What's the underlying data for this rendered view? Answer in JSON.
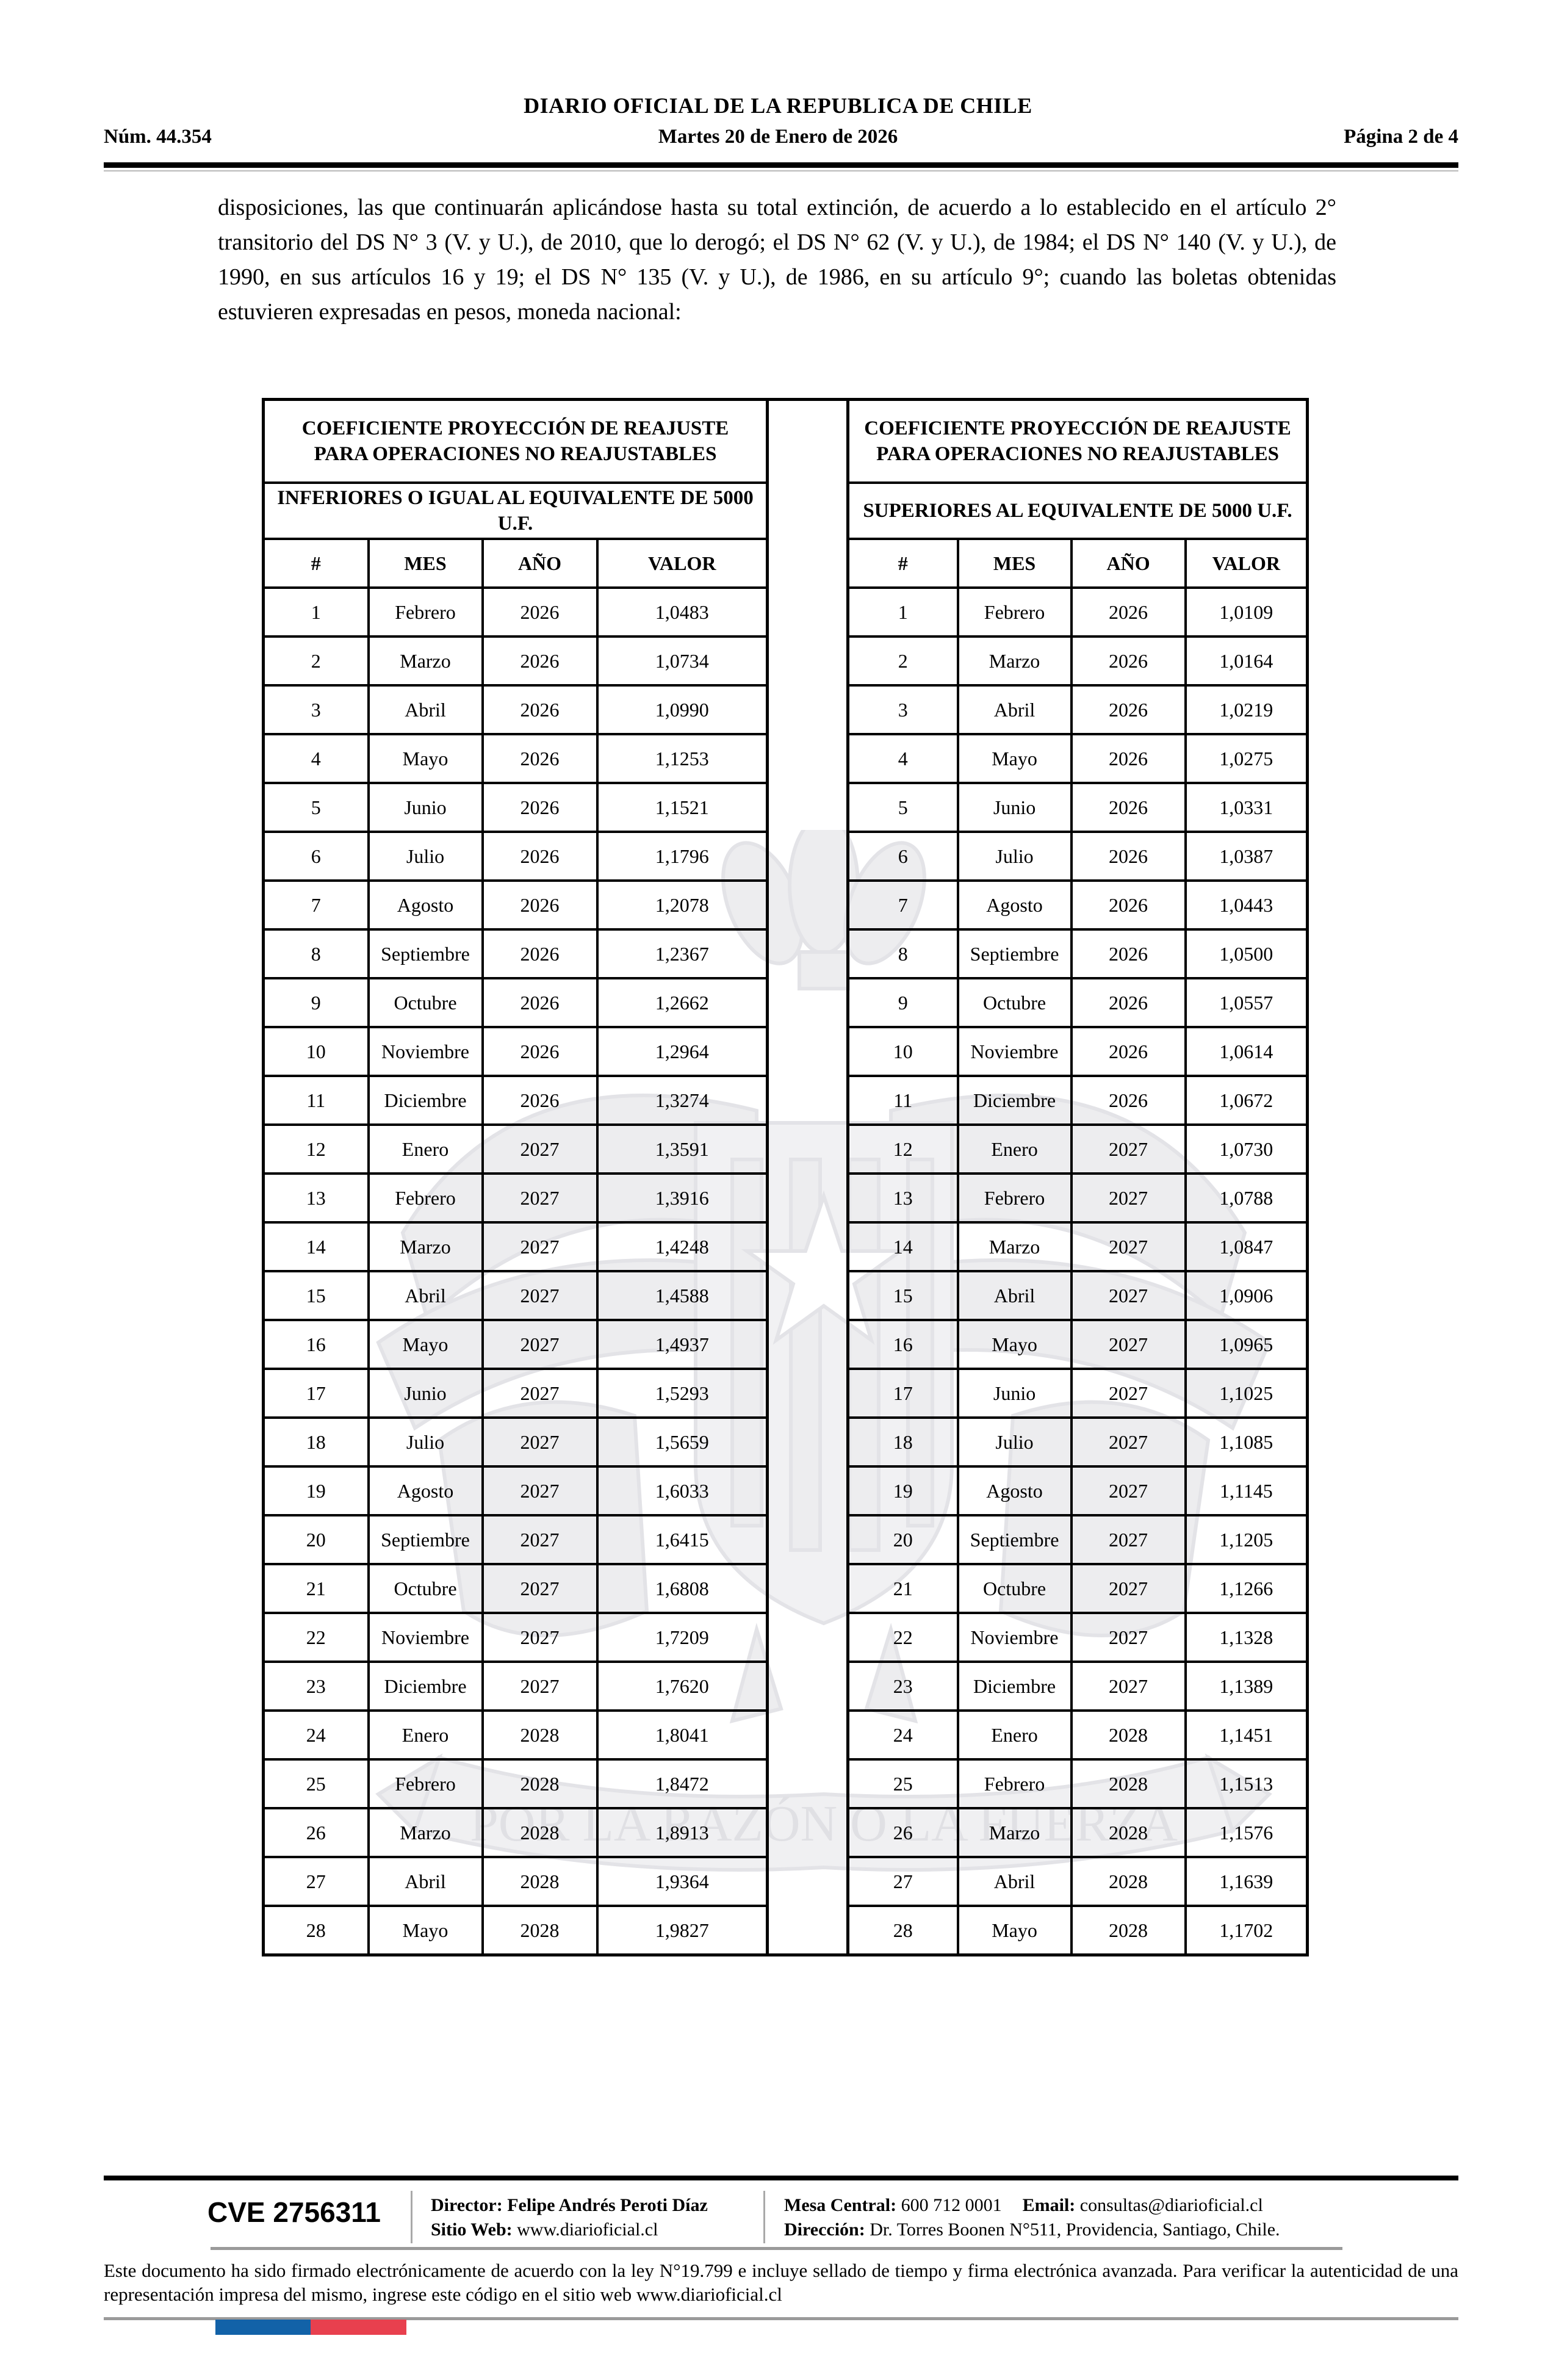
{
  "header": {
    "publication": "DIARIO OFICIAL DE LA REPUBLICA DE CHILE",
    "issue_number": "Núm. 44.354",
    "date": "Martes 20 de Enero de 2026",
    "page_indicator": "Página 2 de 4"
  },
  "body": {
    "intro_paragraph": "disposiciones, las que continuarán aplicándose hasta su total extinción, de acuerdo a lo establecido en el artículo 2° transitorio del DS N° 3 (V. y U.), de 2010, que lo derogó; el DS N° 62 (V. y U.), de 1984; el DS N° 140 (V. y U.), de 1990, en sus artículos 16 y 19; el DS N° 135 (V. y U.), de 1986, en su artículo 9°; cuando las boletas obtenidas estuvieren expresadas en pesos, moneda nacional:"
  },
  "tables": [
    {
      "title": "COEFICIENTE PROYECCIÓN DE REAJUSTE PARA OPERACIONES NO REAJUSTABLES",
      "subtitle": "INFERIORES O IGUAL AL EQUIVALENTE DE 5000 U.F.",
      "columns": [
        "#",
        "MES",
        "AÑO",
        "VALOR"
      ],
      "rows": [
        [
          "1",
          "Febrero",
          "2026",
          "1,0483"
        ],
        [
          "2",
          "Marzo",
          "2026",
          "1,0734"
        ],
        [
          "3",
          "Abril",
          "2026",
          "1,0990"
        ],
        [
          "4",
          "Mayo",
          "2026",
          "1,1253"
        ],
        [
          "5",
          "Junio",
          "2026",
          "1,1521"
        ],
        [
          "6",
          "Julio",
          "2026",
          "1,1796"
        ],
        [
          "7",
          "Agosto",
          "2026",
          "1,2078"
        ],
        [
          "8",
          "Septiembre",
          "2026",
          "1,2367"
        ],
        [
          "9",
          "Octubre",
          "2026",
          "1,2662"
        ],
        [
          "10",
          "Noviembre",
          "2026",
          "1,2964"
        ],
        [
          "11",
          "Diciembre",
          "2026",
          "1,3274"
        ],
        [
          "12",
          "Enero",
          "2027",
          "1,3591"
        ],
        [
          "13",
          "Febrero",
          "2027",
          "1,3916"
        ],
        [
          "14",
          "Marzo",
          "2027",
          "1,4248"
        ],
        [
          "15",
          "Abril",
          "2027",
          "1,4588"
        ],
        [
          "16",
          "Mayo",
          "2027",
          "1,4937"
        ],
        [
          "17",
          "Junio",
          "2027",
          "1,5293"
        ],
        [
          "18",
          "Julio",
          "2027",
          "1,5659"
        ],
        [
          "19",
          "Agosto",
          "2027",
          "1,6033"
        ],
        [
          "20",
          "Septiembre",
          "2027",
          "1,6415"
        ],
        [
          "21",
          "Octubre",
          "2027",
          "1,6808"
        ],
        [
          "22",
          "Noviembre",
          "2027",
          "1,7209"
        ],
        [
          "23",
          "Diciembre",
          "2027",
          "1,7620"
        ],
        [
          "24",
          "Enero",
          "2028",
          "1,8041"
        ],
        [
          "25",
          "Febrero",
          "2028",
          "1,8472"
        ],
        [
          "26",
          "Marzo",
          "2028",
          "1,8913"
        ],
        [
          "27",
          "Abril",
          "2028",
          "1,9364"
        ],
        [
          "28",
          "Mayo",
          "2028",
          "1,9827"
        ]
      ]
    },
    {
      "title": "COEFICIENTE PROYECCIÓN DE REAJUSTE PARA OPERACIONES NO REAJUSTABLES",
      "subtitle": "SUPERIORES AL EQUIVALENTE DE 5000 U.F.",
      "columns": [
        "#",
        "MES",
        "AÑO",
        "VALOR"
      ],
      "rows": [
        [
          "1",
          "Febrero",
          "2026",
          "1,0109"
        ],
        [
          "2",
          "Marzo",
          "2026",
          "1,0164"
        ],
        [
          "3",
          "Abril",
          "2026",
          "1,0219"
        ],
        [
          "4",
          "Mayo",
          "2026",
          "1,0275"
        ],
        [
          "5",
          "Junio",
          "2026",
          "1,0331"
        ],
        [
          "6",
          "Julio",
          "2026",
          "1,0387"
        ],
        [
          "7",
          "Agosto",
          "2026",
          "1,0443"
        ],
        [
          "8",
          "Septiembre",
          "2026",
          "1,0500"
        ],
        [
          "9",
          "Octubre",
          "2026",
          "1,0557"
        ],
        [
          "10",
          "Noviembre",
          "2026",
          "1,0614"
        ],
        [
          "11",
          "Diciembre",
          "2026",
          "1,0672"
        ],
        [
          "12",
          "Enero",
          "2027",
          "1,0730"
        ],
        [
          "13",
          "Febrero",
          "2027",
          "1,0788"
        ],
        [
          "14",
          "Marzo",
          "2027",
          "1,0847"
        ],
        [
          "15",
          "Abril",
          "2027",
          "1,0906"
        ],
        [
          "16",
          "Mayo",
          "2027",
          "1,0965"
        ],
        [
          "17",
          "Junio",
          "2027",
          "1,1025"
        ],
        [
          "18",
          "Julio",
          "2027",
          "1,1085"
        ],
        [
          "19",
          "Agosto",
          "2027",
          "1,1145"
        ],
        [
          "20",
          "Septiembre",
          "2027",
          "1,1205"
        ],
        [
          "21",
          "Octubre",
          "2027",
          "1,1266"
        ],
        [
          "22",
          "Noviembre",
          "2027",
          "1,1328"
        ],
        [
          "23",
          "Diciembre",
          "2027",
          "1,1389"
        ],
        [
          "24",
          "Enero",
          "2028",
          "1,1451"
        ],
        [
          "25",
          "Febrero",
          "2028",
          "1,1513"
        ],
        [
          "26",
          "Marzo",
          "2028",
          "1,1576"
        ],
        [
          "27",
          "Abril",
          "2028",
          "1,1639"
        ],
        [
          "28",
          "Mayo",
          "2028",
          "1,1702"
        ]
      ]
    }
  ],
  "footer": {
    "cve": "CVE 2756311",
    "director_label": "Director:",
    "director_name": "Felipe Andrés Peroti Díaz",
    "website_label": "Sitio Web:",
    "website": "www.diarioficial.cl",
    "phone_label": "Mesa Central:",
    "phone": "600 712 0001",
    "email_label": "Email:",
    "email": "consultas@diarioficial.cl",
    "address_label": "Dirección:",
    "address": "Dr. Torres Boonen N°511, Providencia, Santiago, Chile.",
    "legal_text": "Este documento ha sido firmado electrónicamente de acuerdo con la ley N°19.799 e incluye sellado de tiempo y firma electrónica avanzada. Para verificar la autenticidad de una representación impresa del mismo, ingrese este código en el sitio web www.diarioficial.cl"
  },
  "watermark": {
    "motto": "POR LA RAZÓN O LA FUERZA"
  },
  "colors": {
    "flag_blue": "#1262a8",
    "flag_red": "#e8404e",
    "rule_gray": "#9a9a9a"
  }
}
